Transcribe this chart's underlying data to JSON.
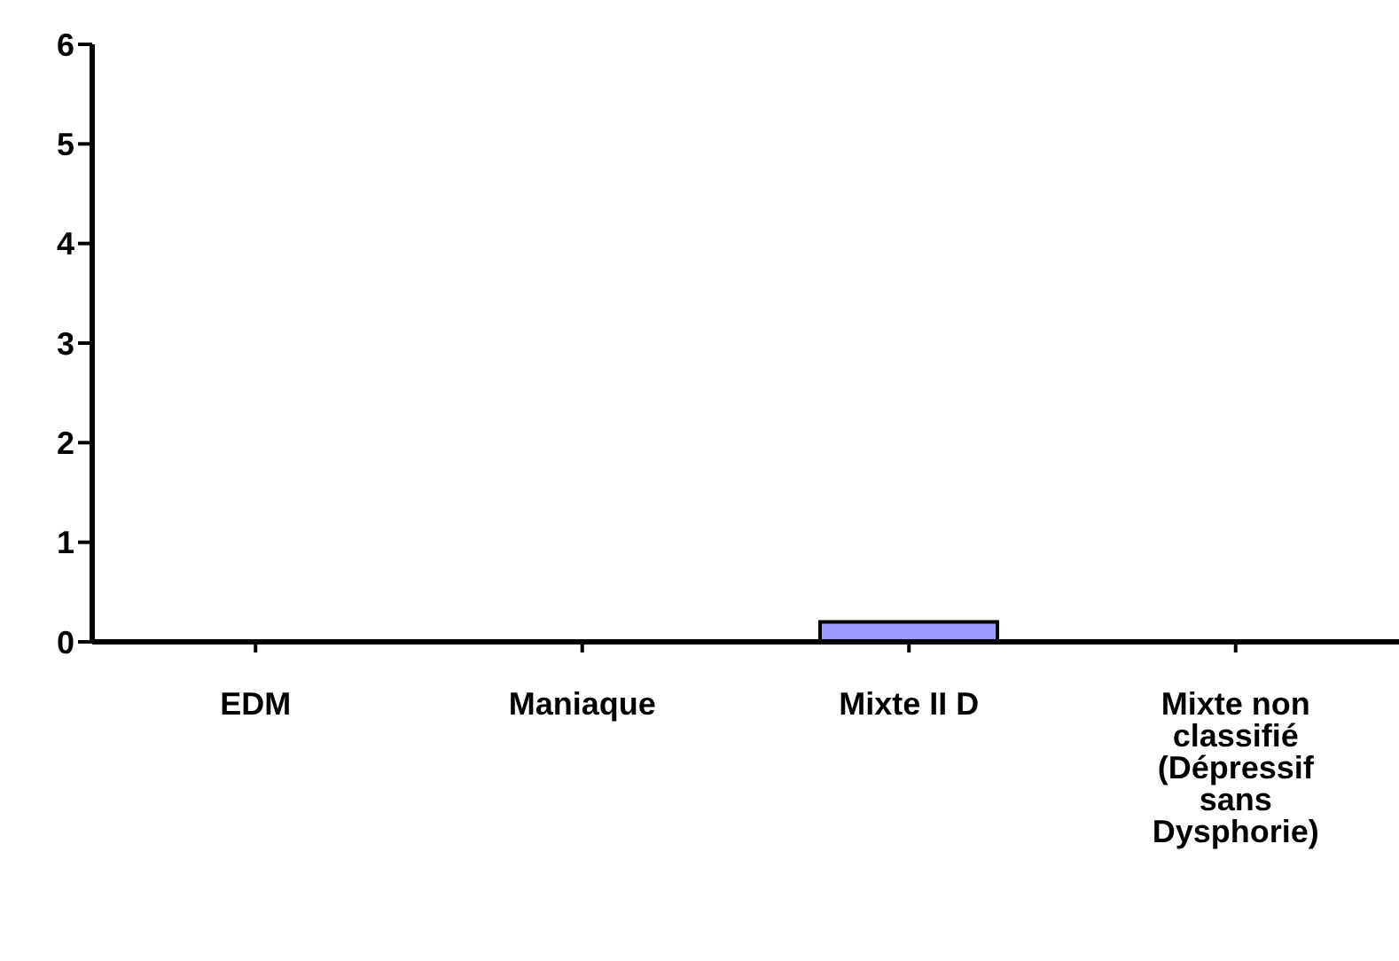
{
  "chart_data": {
    "type": "bar",
    "categories": [
      "EDM",
      "Maniaque",
      "Mixte II D",
      "Mixte non classifié (Dépressif sans Dysphorie)"
    ],
    "values": [
      0,
      0,
      0.2,
      0
    ],
    "color": "#9999ff",
    "ylim": [
      0,
      6
    ],
    "yticks": [
      0,
      1,
      2,
      3,
      4,
      5,
      6
    ],
    "grid": false,
    "legend": false
  }
}
